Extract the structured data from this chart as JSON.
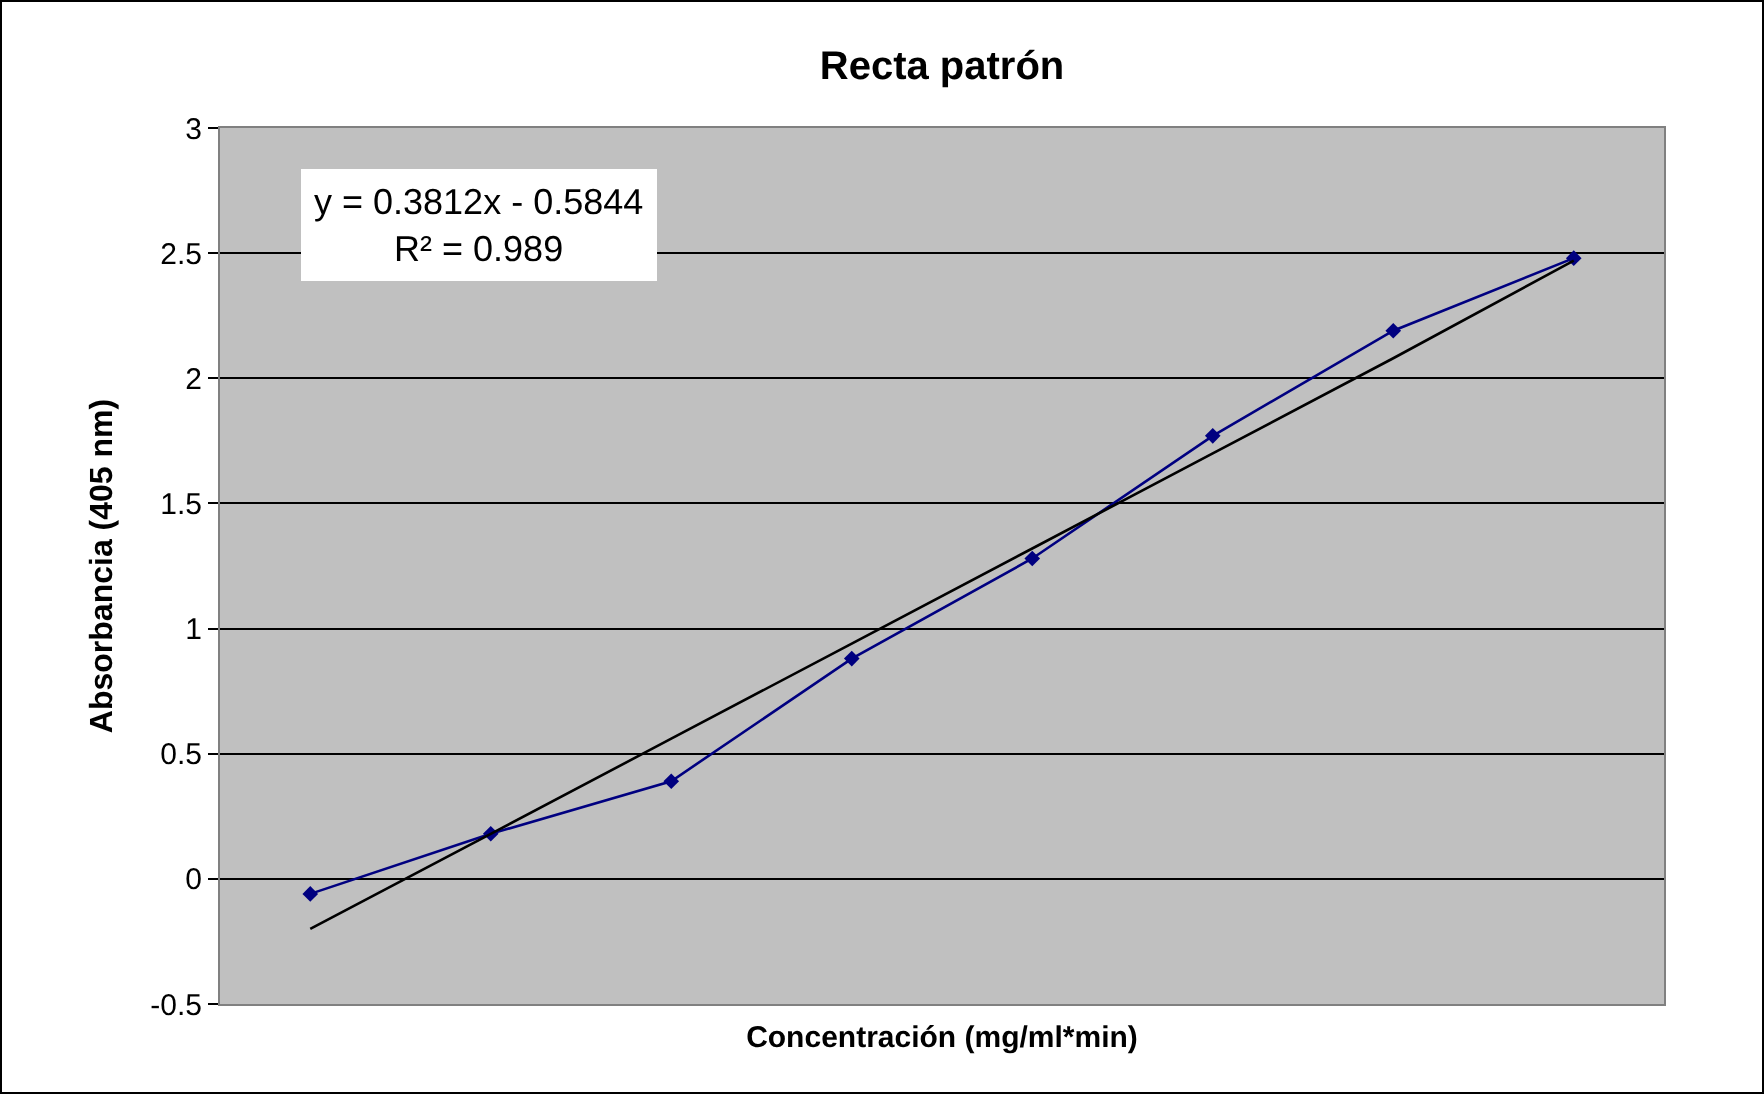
{
  "chart_data": {
    "type": "line",
    "title": "Recta patrón",
    "xlabel": "Concentración (mg/ml*min)",
    "ylabel": "Absorbancia (405 nm)",
    "categories": [
      null,
      null,
      null,
      null,
      null,
      null,
      null,
      null
    ],
    "series": [
      {
        "color": "#000080",
        "values": [
          -0.06,
          0.18,
          0.39,
          0.88,
          1.28,
          1.77,
          2.19,
          2.48
        ],
        "marker": "diamond"
      },
      {
        "color": "#000000",
        "values": [
          -0.2,
          0.18,
          0.56,
          0.94,
          1.32,
          1.7,
          2.08,
          2.47
        ],
        "marker": "none"
      }
    ],
    "annotations": [
      "y = 0.3812x - 0.5844",
      "R² = 0.989"
    ],
    "ylim": [
      -0.5,
      3
    ],
    "yticks": [
      -0.5,
      0,
      0.5,
      1,
      1.5,
      2,
      2.5,
      3
    ],
    "grid": "y",
    "line_style": "solid"
  }
}
